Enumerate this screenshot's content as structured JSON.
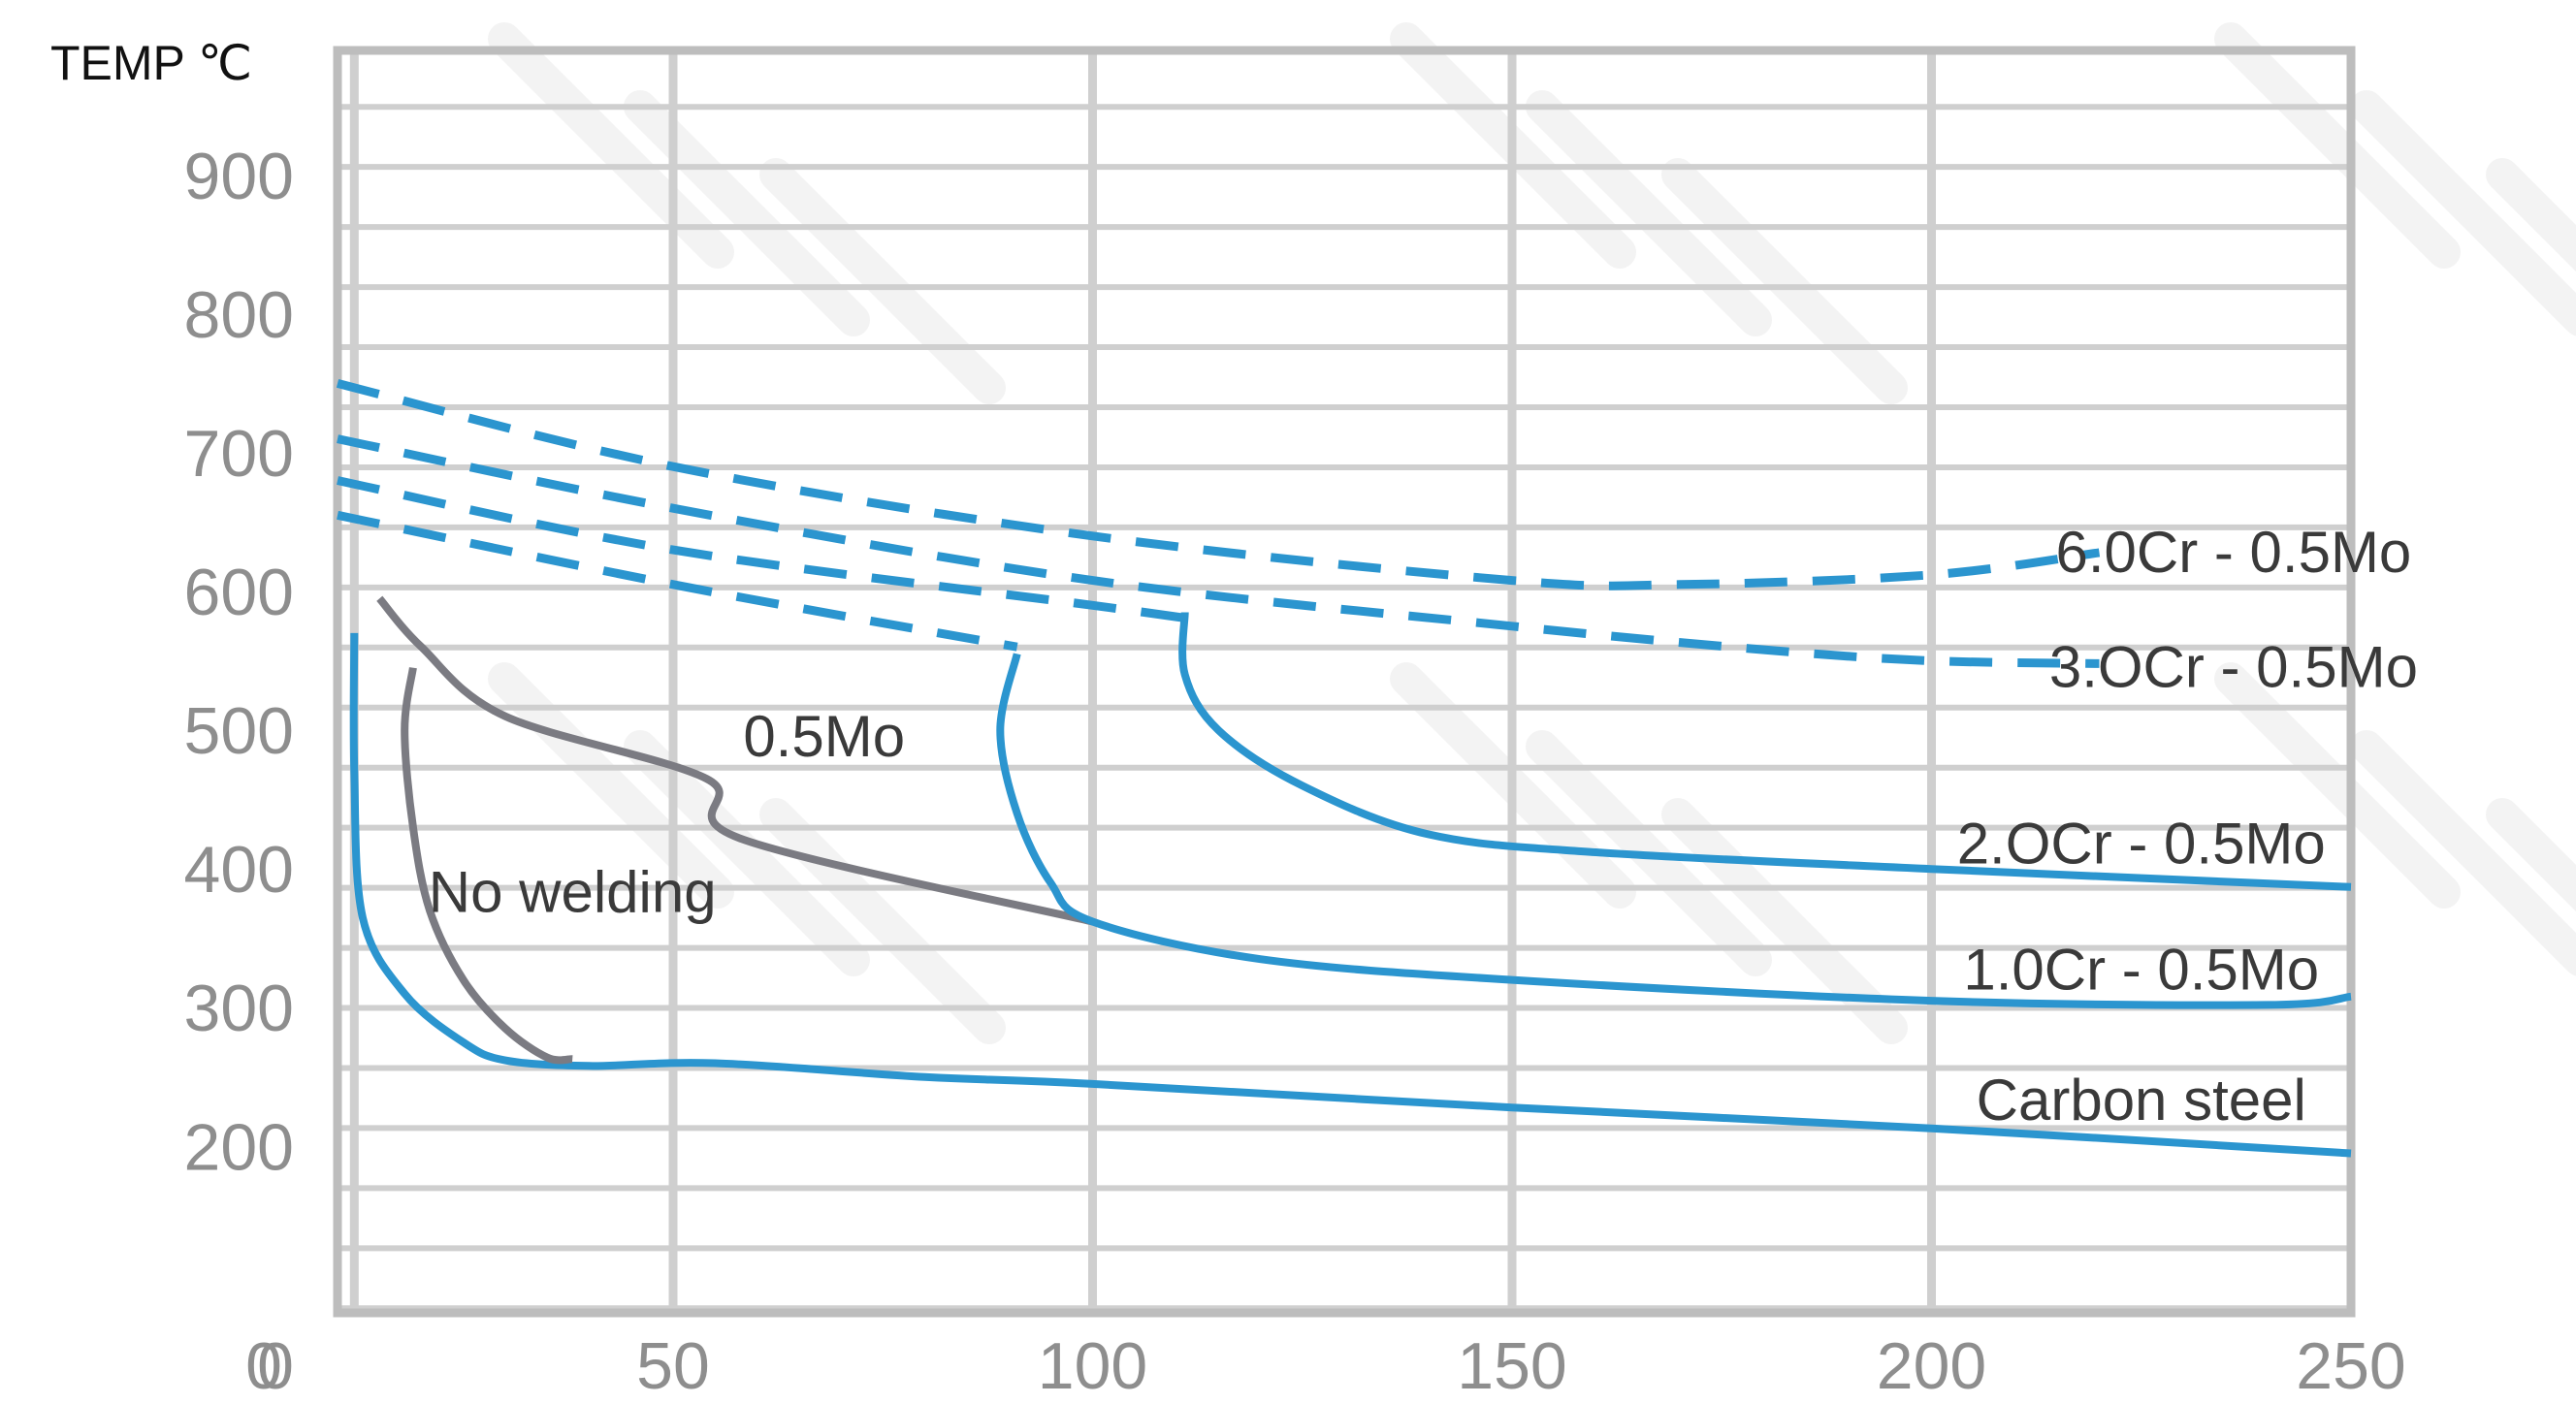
{
  "chart_data": {
    "type": "line",
    "ylabel": "TEMP ℃",
    "xlabel": "",
    "title": "",
    "xlim": [
      10,
      250
    ],
    "ylim": [
      80,
      990
    ],
    "xticks": [
      0,
      50,
      100,
      150,
      200,
      250
    ],
    "yticks": [
      0,
      200,
      300,
      400,
      500,
      600,
      700,
      800,
      900
    ],
    "grid": true,
    "legend": "none",
    "colors": {
      "blue": "#2b95cf",
      "gray": "#7b7b82",
      "grid": "#cfcfcf",
      "frame": "#bdbdbd"
    },
    "series": [
      {
        "color": "#2b95cf",
        "dash": false,
        "points": [
          [
            12,
            570
          ],
          [
            12,
            470
          ],
          [
            13,
            365
          ],
          [
            18,
            310
          ],
          [
            25,
            275
          ],
          [
            30,
            262
          ],
          [
            40,
            258
          ],
          [
            55,
            260
          ],
          [
            80,
            250
          ],
          [
            100,
            245
          ],
          [
            150,
            228
          ],
          [
            200,
            213
          ],
          [
            250,
            195
          ]
        ]
      },
      {
        "color": "#7b7b82",
        "dash": false,
        "points": [
          [
            19,
            545
          ],
          [
            18,
            500
          ],
          [
            19,
            430
          ],
          [
            21,
            370
          ],
          [
            25,
            320
          ],
          [
            30,
            285
          ],
          [
            35,
            264
          ],
          [
            38,
            263
          ]
        ]
      },
      {
        "color": "#7b7b82",
        "dash": false,
        "points": [
          [
            15,
            595
          ],
          [
            20,
            560
          ],
          [
            30,
            510
          ],
          [
            54,
            465
          ],
          [
            58,
            422
          ],
          [
            100,
            362
          ]
        ]
      },
      {
        "color": "#2b95cf",
        "dash": false,
        "points": [
          [
            91,
            555
          ],
          [
            89,
            500
          ],
          [
            91,
            440
          ],
          [
            95,
            390
          ],
          [
            100,
            362
          ],
          [
            120,
            335
          ],
          [
            150,
            320
          ],
          [
            200,
            305
          ],
          [
            240,
            302
          ],
          [
            250,
            308
          ]
        ]
      },
      {
        "color": "#2b95cf",
        "dash": false,
        "points": [
          [
            111,
            585
          ],
          [
            111,
            540
          ],
          [
            115,
            500
          ],
          [
            125,
            460
          ],
          [
            140,
            425
          ],
          [
            160,
            412
          ],
          [
            200,
            400
          ],
          [
            250,
            387
          ]
        ]
      },
      {
        "color": "#2b95cf",
        "dash": true,
        "points": [
          [
            10,
            750
          ],
          [
            50,
            690
          ],
          [
            100,
            640
          ],
          [
            150,
            608
          ],
          [
            170,
            605
          ],
          [
            200,
            612
          ],
          [
            220,
            628
          ]
        ]
      },
      {
        "color": "#2b95cf",
        "dash": true,
        "points": [
          [
            10,
            710
          ],
          [
            50,
            660
          ],
          [
            100,
            608
          ],
          [
            150,
            575
          ],
          [
            180,
            558
          ],
          [
            200,
            550
          ],
          [
            220,
            548
          ]
        ]
      },
      {
        "color": "#2b95cf",
        "dash": true,
        "points": [
          [
            10,
            680
          ],
          [
            50,
            630
          ],
          [
            100,
            590
          ],
          [
            112,
            580
          ]
        ]
      },
      {
        "color": "#2b95cf",
        "dash": true,
        "points": [
          [
            10,
            655
          ],
          [
            50,
            605
          ],
          [
            91,
            560
          ]
        ]
      }
    ],
    "annotations": [
      {
        "text": "6.0Cr - 0.5Mo",
        "x": 236,
        "y": 628
      },
      {
        "text": "3.OCr - 0.5Mo",
        "x": 236,
        "y": 545
      },
      {
        "text": "0.5Mo",
        "x": 68,
        "y": 495
      },
      {
        "text": "2.OCr - 0.5Mo",
        "x": 225,
        "y": 418
      },
      {
        "text": "No welding",
        "x": 38,
        "y": 383
      },
      {
        "text": "1.0Cr - 0.5Mo",
        "x": 225,
        "y": 327
      },
      {
        "text": "Carbon steel",
        "x": 225,
        "y": 233
      }
    ]
  }
}
